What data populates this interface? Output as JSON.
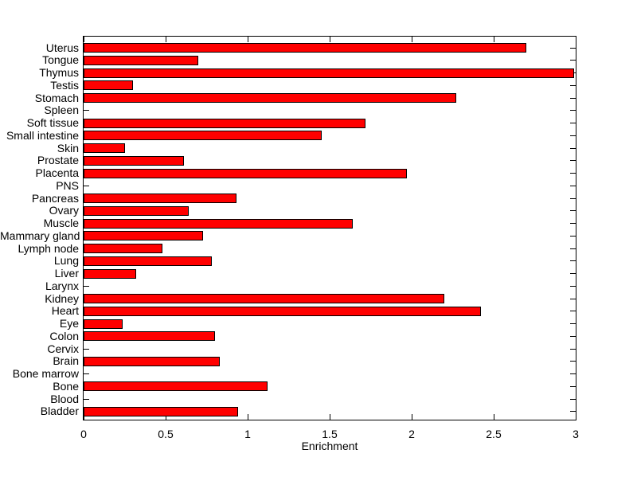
{
  "chart_data": {
    "type": "bar",
    "orientation": "horizontal",
    "xlabel": "Enrichment",
    "categories": [
      "Uterus",
      "Tongue",
      "Thymus",
      "Testis",
      "Stomach",
      "Spleen",
      "Soft tissue",
      "Small intestine",
      "Skin",
      "Prostate",
      "Placenta",
      "PNS",
      "Pancreas",
      "Ovary",
      "Muscle",
      "Mammary gland",
      "Lymph node",
      "Lung",
      "Liver",
      "Larynx",
      "Kidney",
      "Heart",
      "Eye",
      "Colon",
      "Cervix",
      "Brain",
      "Bone marrow",
      "Bone",
      "Blood",
      "Bladder"
    ],
    "values": [
      2.7,
      0.7,
      2.99,
      0.3,
      2.27,
      0,
      1.72,
      1.45,
      0.25,
      0.61,
      1.97,
      0,
      0.93,
      0.64,
      1.64,
      0.73,
      0.48,
      0.78,
      0.32,
      0,
      2.2,
      2.42,
      0.24,
      0.8,
      0,
      0.83,
      0,
      1.12,
      0,
      0.94
    ],
    "xlim": [
      0,
      3
    ],
    "xticks": [
      0,
      0.5,
      1,
      1.5,
      2,
      2.5,
      3
    ],
    "xtick_labels": [
      "0",
      "0.5",
      "1",
      "1.5",
      "2",
      "2.5",
      "3"
    ],
    "grid": false,
    "legend": "none",
    "colors": {
      "bar_fill": "#ff0000",
      "bar_edge": "#000000",
      "axis": "#000000",
      "text": "#000000",
      "background": "#ffffff"
    }
  }
}
